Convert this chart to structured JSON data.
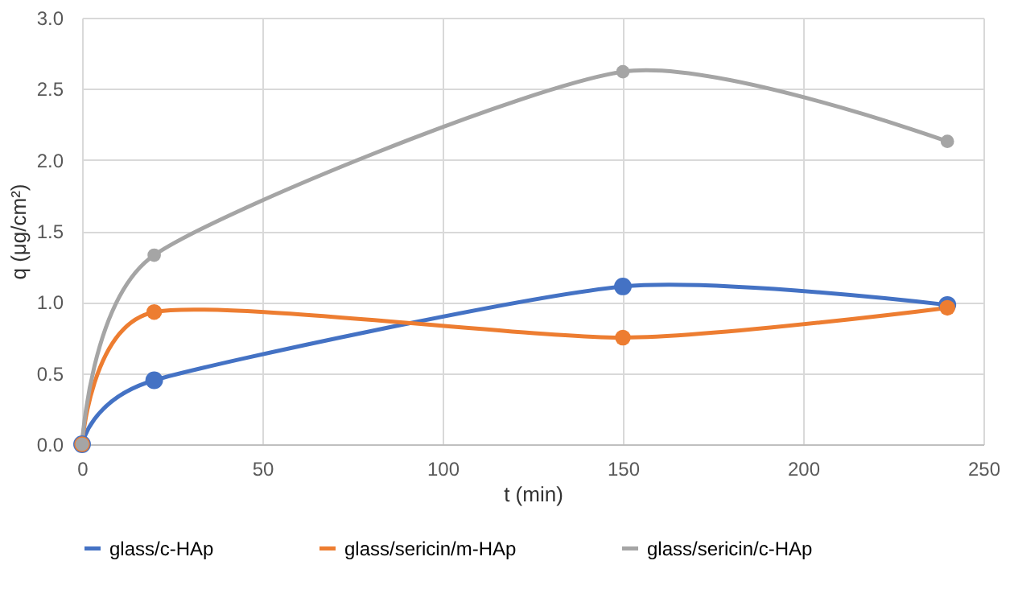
{
  "chart_data": {
    "type": "line",
    "xlabel": "t (min)",
    "ylabel": "q (μg/cm²)",
    "x": [
      0,
      20,
      150,
      240
    ],
    "series": [
      {
        "name": "glass/c-HAp",
        "color": "#4472c4",
        "values": [
          0,
          0.45,
          1.11,
          0.98
        ]
      },
      {
        "name": "glass/sericin/m-HAp",
        "color": "#ed7d31",
        "values": [
          0,
          0.93,
          0.75,
          0.96
        ]
      },
      {
        "name": "glass/sericin/c-HAp",
        "color": "#a5a5a5",
        "values": [
          0,
          1.33,
          2.62,
          2.13
        ]
      }
    ],
    "xlim": [
      0,
      250
    ],
    "xticks": [
      0,
      50,
      100,
      150,
      200,
      250
    ],
    "ylim": [
      0,
      3
    ],
    "yticks": [
      {
        "value": 0,
        "label": "0.0"
      },
      {
        "value": 0.5,
        "label": "0.5"
      },
      {
        "value": 1,
        "label": "1.0"
      },
      {
        "value": 1.5,
        "label": "1.5"
      },
      {
        "value": 2,
        "label": "2.0"
      },
      {
        "value": 2.5,
        "label": "2.5"
      },
      {
        "value": 3,
        "label": "3.0"
      }
    ],
    "grid": true,
    "legend": "bottom",
    "marker": "circle",
    "line_style": "solid"
  }
}
